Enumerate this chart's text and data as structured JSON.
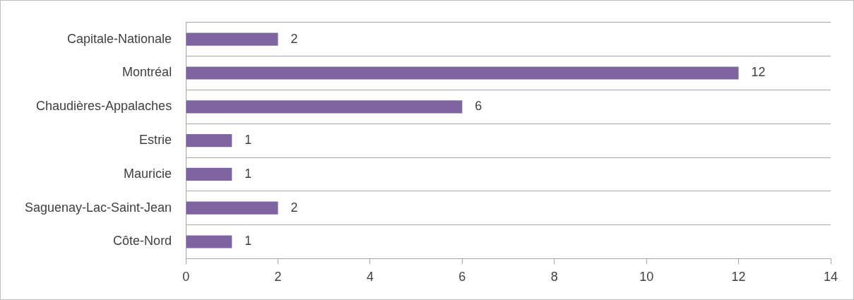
{
  "chart_data": {
    "type": "bar",
    "orientation": "horizontal",
    "categories": [
      "Capitale-Nationale",
      "Montréal",
      "Chaudières-Appalaches",
      "Estrie",
      "Mauricie",
      "Saguenay-Lac-Saint-Jean",
      "Côte-Nord"
    ],
    "values": [
      2,
      12,
      6,
      1,
      1,
      2,
      1
    ],
    "color": "#8064a2",
    "xlim": [
      0,
      14
    ],
    "xticks": [
      0,
      2,
      4,
      6,
      8,
      10,
      12,
      14
    ],
    "grid": "y",
    "data_labels": true
  }
}
